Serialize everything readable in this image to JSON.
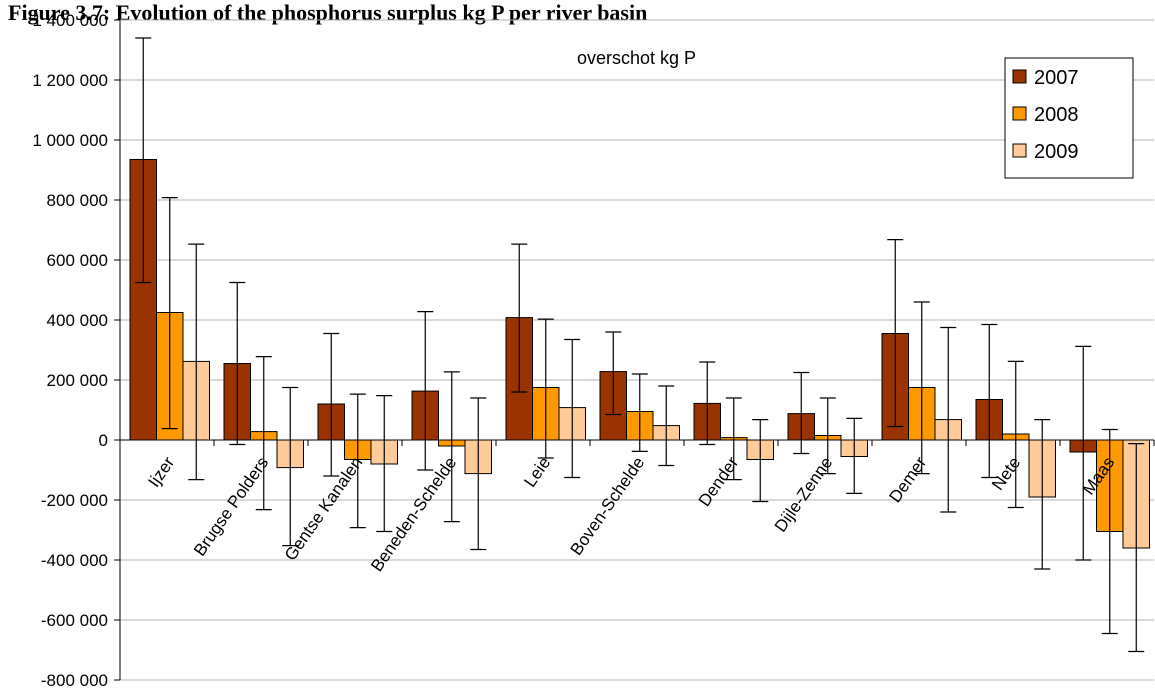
{
  "chart_data": {
    "type": "bar",
    "title": "Figure 3.7: Evolution of the phosphorus surplus kg P per river basin",
    "annotation": "overschot kg P",
    "categories": [
      "Ijzer",
      "Brugse Polders",
      "Gentse Kanalen",
      "Beneden-Schelde",
      "Leie",
      "Boven-Schelde",
      "Dender",
      "Dijle-Zenne",
      "Demer",
      "Nete",
      "Maas"
    ],
    "series": [
      {
        "name": "2007",
        "color": "#993300",
        "values": [
          935000,
          255000,
          120000,
          163000,
          408000,
          228000,
          122000,
          88000,
          355000,
          135000,
          -40000
        ],
        "err_low": [
          525000,
          -15000,
          -120000,
          -100000,
          160000,
          85000,
          -15000,
          -45000,
          45000,
          -125000,
          -400000
        ],
        "err_high": [
          1340000,
          525000,
          355000,
          428000,
          653000,
          360000,
          260000,
          225000,
          668000,
          385000,
          312000
        ]
      },
      {
        "name": "2008",
        "color": "#FF9900",
        "values": [
          425000,
          28000,
          -65000,
          -20000,
          175000,
          95000,
          8000,
          15000,
          175000,
          20000,
          -305000
        ],
        "err_low": [
          38000,
          -232000,
          -292000,
          -272000,
          -60000,
          -38000,
          -132000,
          -112000,
          -112000,
          -225000,
          -645000
        ],
        "err_high": [
          808000,
          278000,
          153000,
          227000,
          403000,
          220000,
          140000,
          140000,
          460000,
          262000,
          35000
        ]
      },
      {
        "name": "2009",
        "color": "#FFCC99",
        "values": [
          262000,
          -92000,
          -80000,
          -112000,
          108000,
          48000,
          -65000,
          -55000,
          68000,
          -190000,
          -360000
        ],
        "err_low": [
          -132000,
          -352000,
          -305000,
          -365000,
          -125000,
          -85000,
          -205000,
          -178000,
          -240000,
          -430000,
          -705000
        ],
        "err_high": [
          653000,
          175000,
          148000,
          140000,
          335000,
          180000,
          68000,
          72000,
          375000,
          68000,
          -12000
        ]
      }
    ],
    "ylim": [
      -800000,
      1400000
    ],
    "yticks": [
      1400000,
      1200000,
      1000000,
      800000,
      600000,
      400000,
      200000,
      0,
      -200000,
      -400000,
      -600000,
      -800000
    ],
    "ytick_labels": [
      "1 400 000",
      "1 200 000",
      "1 000 000",
      "800 000",
      "600 000",
      "400 000",
      "200 000",
      "0",
      "-200 000",
      "-400 000",
      "-600 000",
      "-800 000"
    ],
    "grid": true,
    "legend_position": "top-right"
  }
}
